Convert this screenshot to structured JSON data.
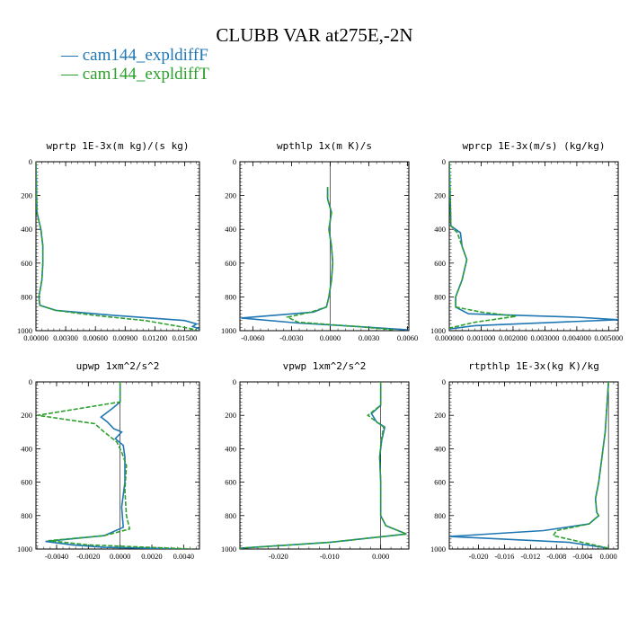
{
  "title": "CLUBB VAR at275E,-2N",
  "legend": [
    {
      "label": "cam144_expldiffF",
      "color": "#1f77b4",
      "dash": "solid"
    },
    {
      "label": "cam144_expldiffT",
      "color": "#2ca02c",
      "dash": "dashed"
    }
  ],
  "chart_data": [
    {
      "type": "line",
      "title": "wprtp  1E-3x(m kg)/(s kg)",
      "xlim": [
        0,
        0.0165
      ],
      "ylim": [
        1000,
        0
      ],
      "xticks": [
        0,
        0.003,
        0.006,
        0.009,
        0.012,
        0.015
      ],
      "xticklabels": [
        "0.00000",
        "0.00300",
        "0.00600",
        "0.00900",
        "0.01200",
        "0.01500"
      ],
      "yticks": [
        0,
        200,
        400,
        600,
        800,
        1000
      ],
      "series": [
        {
          "name": "cam144_expldiffF",
          "x": [
            0,
            0.0001,
            0.0005,
            0.0007,
            0.0007,
            0.0006,
            0.0003,
            0.0004,
            0.002,
            0.008,
            0.015,
            0.0162,
            0.0158,
            0.0165
          ],
          "y": [
            0,
            300,
            400,
            500,
            600,
            700,
            800,
            850,
            880,
            910,
            940,
            960,
            975,
            990
          ]
        },
        {
          "name": "cam144_expldiffT",
          "x": [
            0,
            0.0001,
            0.0005,
            0.0007,
            0.0007,
            0.0006,
            0.0003,
            0.0004,
            0.002,
            0.006,
            0.011,
            0.014,
            0.0162
          ],
          "y": [
            0,
            300,
            400,
            500,
            600,
            700,
            800,
            850,
            880,
            910,
            940,
            970,
            995
          ]
        }
      ]
    },
    {
      "type": "line",
      "title": "wpthlp  1x(m K)/s",
      "xlim": [
        -0.007,
        0.0061
      ],
      "ylim": [
        1000,
        0
      ],
      "xticks": [
        -0.006,
        -0.003,
        0,
        0.003,
        0.006
      ],
      "xticklabels": [
        "-0.0060",
        "-0.0030",
        "0.0000",
        "0.0030",
        "0.0060"
      ],
      "yticks": [
        0,
        200,
        400,
        600,
        800,
        1000
      ],
      "series": [
        {
          "name": "cam144_expldiffF",
          "x": [
            -0.0002,
            -0.0002,
            0.0001,
            -0.0001,
            0.0001,
            0.0002,
            0.0001,
            -0.0001,
            -0.0003,
            -0.0013,
            -0.0069,
            -0.0025,
            0.002,
            0.006
          ],
          "y": [
            150,
            220,
            300,
            400,
            500,
            600,
            700,
            800,
            860,
            890,
            925,
            955,
            975,
            995
          ]
        },
        {
          "name": "cam144_expldiffT",
          "x": [
            -0.0002,
            -0.0002,
            0.0001,
            -0.0001,
            0.0001,
            0.0002,
            0.0001,
            -0.0001,
            -0.0003,
            -0.0015,
            -0.0033,
            -0.0025,
            0.002,
            0.005
          ],
          "y": [
            150,
            220,
            300,
            400,
            500,
            600,
            700,
            800,
            860,
            890,
            920,
            950,
            975,
            995
          ]
        }
      ]
    },
    {
      "type": "line",
      "title": "wprcp  1E-3x(m/s) (kg/kg)",
      "xlim": [
        0,
        0.0053
      ],
      "ylim": [
        1000,
        0
      ],
      "xticks": [
        0,
        0.001,
        0.002,
        0.003,
        0.004,
        0.005
      ],
      "xticklabels": [
        "0.000000",
        "0.001000",
        "0.002000",
        "0.003000",
        "0.004000",
        "0.005000"
      ],
      "yticks": [
        0,
        200,
        400,
        600,
        800,
        1000
      ],
      "series": [
        {
          "name": "cam144_expldiffF",
          "x": [
            0,
            5e-05,
            0.00035,
            0.0004,
            0.00055,
            0.0004,
            0.0002,
            0.0002,
            0.0006,
            0.004,
            0.0053,
            0.0008,
            0
          ],
          "y": [
            0,
            380,
            420,
            500,
            580,
            700,
            800,
            860,
            900,
            920,
            935,
            970,
            990
          ]
        },
        {
          "name": "cam144_expldiffT",
          "x": [
            0,
            5e-05,
            0.00025,
            0.0004,
            0.00055,
            0.0004,
            0.0002,
            0.0002,
            0.001,
            0.0021,
            0.0008,
            0
          ],
          "y": [
            0,
            380,
            420,
            500,
            580,
            700,
            800,
            860,
            890,
            915,
            950,
            985
          ]
        }
      ]
    },
    {
      "type": "line",
      "title": "upwp  1xm^2/s^2",
      "xlim": [
        -0.0053,
        0.005
      ],
      "ylim": [
        1000,
        0
      ],
      "xticks": [
        -0.004,
        -0.002,
        0,
        0.002,
        0.004
      ],
      "xticklabels": [
        "-0.0040",
        "-0.0020",
        "0.0000",
        "0.0020",
        "0.0040"
      ],
      "yticks": [
        0,
        200,
        400,
        600,
        800,
        1000
      ],
      "series": [
        {
          "name": "cam144_expldiffF",
          "x": [
            0,
            0,
            -0.0005,
            -0.0012,
            -0.0008,
            -0.0004,
            0.0001,
            -0.0003,
            0.0002,
            0.0003,
            0.0003,
            0.0001,
            0.0002,
            -0.001,
            -0.0047,
            -0.003,
            -0.001,
            0.004
          ],
          "y": [
            0,
            120,
            160,
            210,
            240,
            280,
            300,
            340,
            380,
            450,
            600,
            750,
            870,
            920,
            955,
            975,
            990,
            1000
          ]
        },
        {
          "name": "cam144_expldiffT",
          "x": [
            0,
            0,
            -0.0052,
            -0.0016,
            -0.001,
            -0.0002,
            0.0001,
            0.0004,
            0.0003,
            0.0004,
            0.0006,
            -0.001,
            -0.0045,
            -0.002,
            0.0045
          ],
          "y": [
            0,
            120,
            200,
            250,
            300,
            360,
            420,
            500,
            650,
            800,
            880,
            920,
            950,
            975,
            1000
          ]
        }
      ]
    },
    {
      "type": "line",
      "title": "vpwp  1xm^2/s^2",
      "xlim": [
        -0.0275,
        0.0055
      ],
      "ylim": [
        1000,
        0
      ],
      "xticks": [
        -0.02,
        -0.01,
        0
      ],
      "xticklabels": [
        "-0.020",
        "-0.010",
        "0.000"
      ],
      "yticks": [
        0,
        200,
        400,
        600,
        800,
        1000
      ],
      "series": [
        {
          "name": "cam144_expldiffF",
          "x": [
            0,
            0,
            -0.0018,
            -0.0008,
            0.0008,
            0.0002,
            -0.0002,
            0,
            0,
            0.001,
            0.005,
            -0.01,
            -0.0275
          ],
          "y": [
            0,
            140,
            190,
            240,
            270,
            350,
            450,
            600,
            800,
            860,
            910,
            960,
            995
          ]
        },
        {
          "name": "cam144_expldiffT",
          "x": [
            0,
            0,
            -0.0025,
            -0.0008,
            0.0006,
            0.0001,
            -0.0002,
            0,
            0,
            0.001,
            0.005,
            -0.01,
            -0.0275
          ],
          "y": [
            0,
            140,
            200,
            240,
            270,
            350,
            450,
            600,
            800,
            860,
            910,
            960,
            995
          ]
        }
      ]
    },
    {
      "type": "line",
      "title": "rtpthlp  1E-3x(kg K)/kg",
      "xlim": [
        -0.0245,
        0.0015
      ],
      "ylim": [
        1000,
        0
      ],
      "xticks": [
        -0.02,
        -0.016,
        -0.012,
        -0.008,
        -0.004,
        0
      ],
      "xticklabels": [
        "-0.020",
        "-0.016",
        "-0.012",
        "-0.008",
        "-0.004",
        "0.000"
      ],
      "yticks": [
        0,
        200,
        400,
        600,
        800,
        1000
      ],
      "series": [
        {
          "name": "cam144_expldiffF",
          "x": [
            0,
            -0.0005,
            -0.001,
            -0.0015,
            -0.002,
            -0.0018,
            -0.0015,
            -0.003,
            -0.01,
            -0.0245,
            -0.006,
            0
          ],
          "y": [
            0,
            300,
            450,
            600,
            700,
            780,
            800,
            850,
            890,
            925,
            960,
            995
          ]
        },
        {
          "name": "cam144_expldiffT",
          "x": [
            0,
            -0.0005,
            -0.001,
            -0.0015,
            -0.002,
            -0.0018,
            -0.0015,
            -0.003,
            -0.008,
            -0.0085,
            -0.004,
            0
          ],
          "y": [
            0,
            300,
            450,
            600,
            700,
            780,
            800,
            850,
            890,
            920,
            960,
            995
          ]
        }
      ]
    }
  ]
}
